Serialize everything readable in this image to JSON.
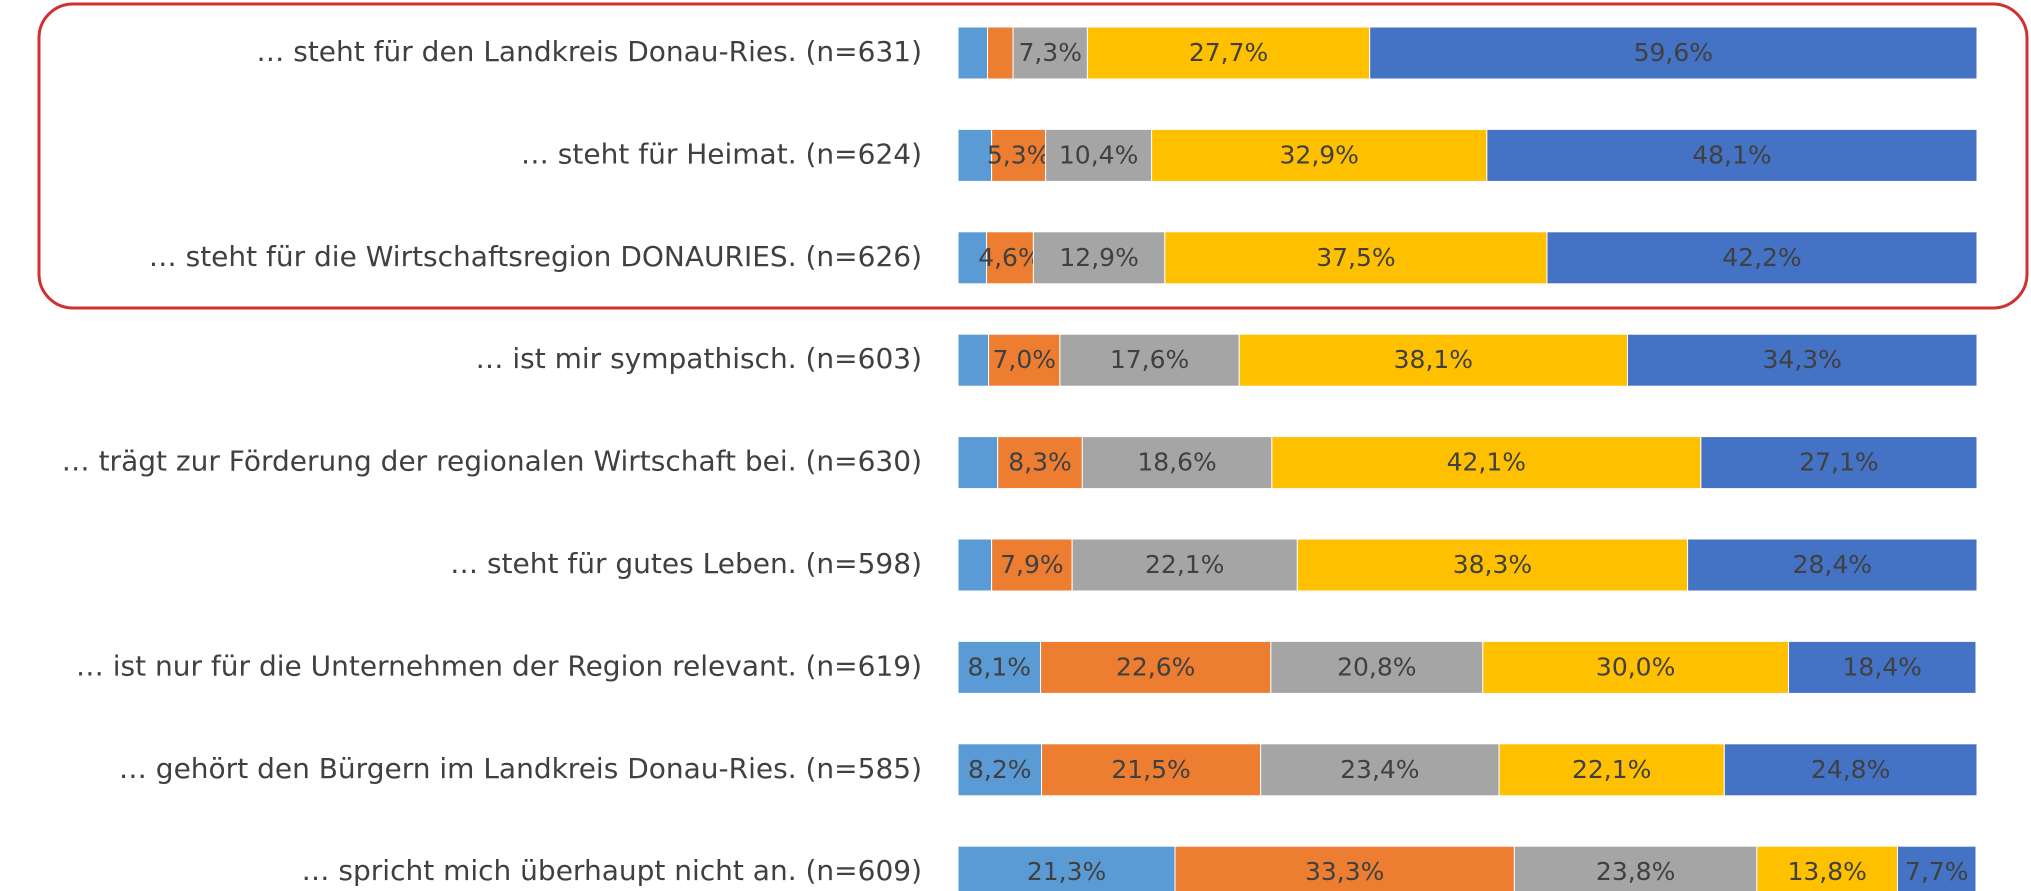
{
  "chart_data": {
    "type": "stacked-bar-horizontal",
    "categories": [
      "… steht für den Landkreis Donau-Ries. (n=631)",
      "… steht für Heimat. (n=624)",
      "… steht für die Wirtschaftsregion DONAURIES. (n=626)",
      "… ist mir sympathisch. (n=603)",
      "… trägt zur Förderung der regionalen Wirtschaft bei. (n=630)",
      "… steht für gutes Leben. (n=598)",
      "… ist nur für die Unternehmen der Region relevant. (n=619)",
      "… gehört den Bürgern im Landkreis Donau-Ries. (n=585)",
      "… spricht mich überhaupt nicht an. (n=609)"
    ],
    "xlim": [
      0,
      100
    ],
    "series": [
      {
        "color": "#5b9bd5",
        "values": [
          2.9,
          3.3,
          2.8,
          3.0,
          3.9,
          3.3,
          8.1,
          8.2,
          21.3
        ],
        "value_labels": [
          null,
          null,
          null,
          null,
          null,
          null,
          "8,1%",
          "8,2%",
          "21,3%"
        ]
      },
      {
        "color": "#ed7d31",
        "values": [
          2.5,
          5.3,
          4.6,
          7.0,
          8.3,
          7.9,
          22.6,
          21.5,
          33.3
        ],
        "value_labels": [
          null,
          "5,3%",
          "4,6%",
          "7,0%",
          "8,3%",
          "7,9%",
          "22,6%",
          "21,5%",
          "33,3%"
        ]
      },
      {
        "color": "#a5a5a5",
        "values": [
          7.3,
          10.4,
          12.9,
          17.6,
          18.6,
          22.1,
          20.8,
          23.4,
          23.8
        ],
        "value_labels": [
          "7,3%",
          "10,4%",
          "12,9%",
          "17,6%",
          "18,6%",
          "22,1%",
          "20,8%",
          "23,4%",
          "23,8%"
        ]
      },
      {
        "color": "#ffc000",
        "values": [
          27.7,
          32.9,
          37.5,
          38.1,
          42.1,
          38.3,
          30.0,
          22.1,
          13.8
        ],
        "value_labels": [
          "27,7%",
          "32,9%",
          "37,5%",
          "38,1%",
          "42,1%",
          "38,3%",
          "30,0%",
          "22,1%",
          "13,8%"
        ]
      },
      {
        "color": "#4472c4",
        "values": [
          59.6,
          48.1,
          42.2,
          34.3,
          27.1,
          28.4,
          18.4,
          24.8,
          7.7
        ],
        "value_labels": [
          "59,6%",
          "48,1%",
          "42,2%",
          "34,3%",
          "27,1%",
          "28,4%",
          "18,4%",
          "24,8%",
          "7,7%"
        ]
      }
    ]
  }
}
